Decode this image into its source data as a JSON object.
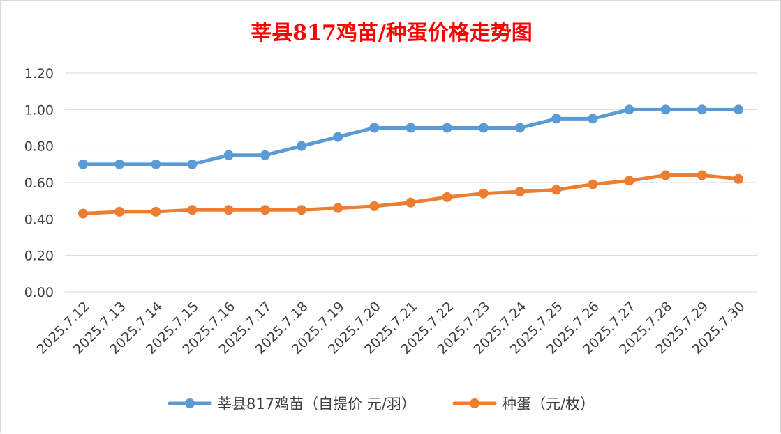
{
  "chart_data": {
    "type": "line",
    "title": "莘县817鸡苗/种蛋价格走势图",
    "xlabel": "",
    "ylabel": "",
    "categories": [
      "2025.7.12",
      "2025.7.13",
      "2025.7.14",
      "2025.7.15",
      "2025.7.16",
      "2025.7.17",
      "2025.7.18",
      "2025.7.19",
      "2025.7.20",
      "2025.7.21",
      "2025.7.22",
      "2025.7.23",
      "2025.7.24",
      "2025.7.25",
      "2025.7.26",
      "2025.7.27",
      "2025.7.28",
      "2025.7.29",
      "2025.7.30"
    ],
    "ylim": [
      0,
      1.2
    ],
    "yticks": [
      "0.00",
      "0.20",
      "0.40",
      "0.60",
      "0.80",
      "1.00",
      "1.20"
    ],
    "grid": true,
    "legend_position": "bottom",
    "series": [
      {
        "name": "莘县817鸡苗（自提价 元/羽）",
        "color": "#5b9bd5",
        "values": [
          0.7,
          0.7,
          0.7,
          0.7,
          0.75,
          0.75,
          0.8,
          0.85,
          0.9,
          0.9,
          0.9,
          0.9,
          0.9,
          0.95,
          0.95,
          1.0,
          1.0,
          1.0,
          1.0
        ]
      },
      {
        "name": "种蛋（元/枚）",
        "color": "#ed7d31",
        "values": [
          0.43,
          0.44,
          0.44,
          0.45,
          0.45,
          0.45,
          0.45,
          0.46,
          0.47,
          0.49,
          0.52,
          0.54,
          0.55,
          0.56,
          0.59,
          0.61,
          0.64,
          0.64,
          0.62
        ]
      }
    ]
  }
}
